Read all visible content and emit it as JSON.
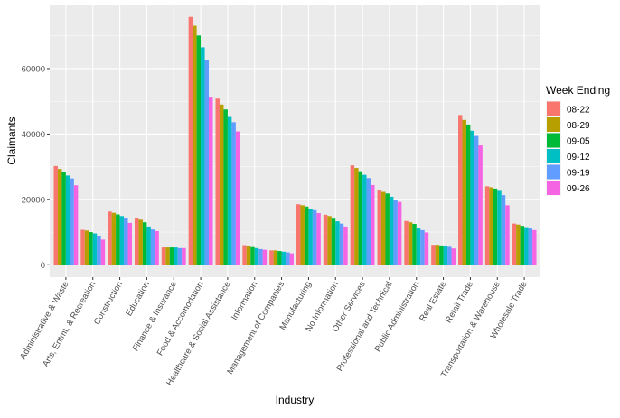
{
  "chart_data": {
    "type": "bar",
    "title": "",
    "xlabel": "Industry",
    "ylabel": "Claimants",
    "ylim": [
      -3790,
      79590
    ],
    "yticks": [
      0,
      20000,
      40000,
      60000
    ],
    "grid": true,
    "legend": {
      "title": "Week Ending",
      "position": "right"
    },
    "categories": [
      "Administrative & Waste",
      "Arts, Entmt, & Recreation",
      "Construction",
      "Education",
      "Finance & Insurance",
      "Food & Accomodation",
      "Healthcare & Social Assistance",
      "Information",
      "Management of Companies",
      "Manufacturing",
      "No Information",
      "Other Services",
      "Professional and Technical",
      "Public Administration",
      "Real Estate",
      "Retail Trade",
      "Transportation & Warehouse",
      "Wholesale Trade"
    ],
    "series": [
      {
        "name": "08-22",
        "color": "#F8766D",
        "values": [
          30200,
          10700,
          16300,
          14300,
          5300,
          75800,
          50800,
          6000,
          4400,
          18500,
          15300,
          30400,
          22700,
          13400,
          6100,
          45800,
          24000,
          12600
        ]
      },
      {
        "name": "08-29",
        "color": "#B79F00",
        "values": [
          29300,
          10500,
          15900,
          13800,
          5300,
          73100,
          49000,
          5700,
          4400,
          18200,
          14900,
          29600,
          22300,
          13000,
          6100,
          44300,
          23700,
          12300
        ]
      },
      {
        "name": "09-05",
        "color": "#00BA38",
        "values": [
          28400,
          10000,
          15400,
          13000,
          5300,
          70100,
          47500,
          5400,
          4200,
          17800,
          14100,
          28600,
          21800,
          12500,
          5900,
          42900,
          23300,
          11900
        ]
      },
      {
        "name": "09-12",
        "color": "#00BFC4",
        "values": [
          27300,
          9600,
          14900,
          11700,
          5300,
          66500,
          45200,
          5100,
          4000,
          17200,
          13300,
          27500,
          20800,
          11100,
          5700,
          41000,
          22600,
          11500
        ]
      },
      {
        "name": "09-19",
        "color": "#619CFF",
        "values": [
          26400,
          8900,
          14300,
          10800,
          5100,
          62500,
          43600,
          4800,
          3800,
          16700,
          12600,
          26500,
          19900,
          10600,
          5500,
          39400,
          21300,
          11100
        ]
      },
      {
        "name": "09-26",
        "color": "#F564E3",
        "values": [
          24300,
          7700,
          12800,
          10300,
          5100,
          51400,
          40800,
          4600,
          3500,
          15800,
          11700,
          24400,
          19200,
          9900,
          5000,
          36500,
          18200,
          10600
        ]
      }
    ]
  }
}
